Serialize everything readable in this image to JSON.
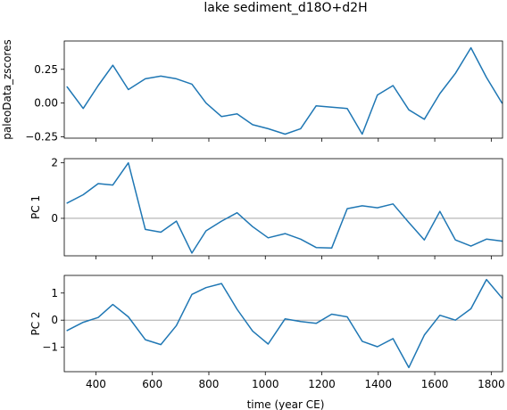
{
  "title": "lake sediment_d18O+d2H",
  "chart_data": [
    {
      "type": "line",
      "ylabel": "paleoData_zscores",
      "xlim": [
        288,
        1840
      ],
      "ylim": [
        -0.26,
        0.46
      ],
      "yticks": [
        -0.25,
        0.0,
        0.25
      ],
      "ytick_labels": [
        "−0.25",
        "0.00",
        "0.25"
      ],
      "zero_line": false,
      "x": [
        298,
        355,
        408,
        460,
        515,
        575,
        630,
        685,
        740,
        790,
        845,
        900,
        955,
        1010,
        1070,
        1125,
        1180,
        1235,
        1290,
        1343,
        1397,
        1452,
        1508,
        1563,
        1618,
        1673,
        1728,
        1783,
        1838
      ],
      "y": [
        0.12,
        -0.04,
        0.13,
        0.28,
        0.1,
        0.18,
        0.2,
        0.18,
        0.14,
        0.0,
        -0.1,
        -0.08,
        -0.16,
        -0.19,
        -0.23,
        -0.19,
        -0.02,
        -0.03,
        -0.04,
        -0.23,
        0.06,
        0.13,
        -0.05,
        -0.12,
        0.07,
        0.22,
        0.41,
        0.19,
        0.0
      ]
    },
    {
      "type": "line",
      "ylabel": "PC 1",
      "xlim": [
        288,
        1840
      ],
      "ylim": [
        -1.35,
        2.15
      ],
      "yticks": [
        0,
        2
      ],
      "ytick_labels": [
        "0",
        "2"
      ],
      "zero_line": true,
      "x": [
        298,
        355,
        408,
        460,
        515,
        575,
        630,
        685,
        740,
        790,
        845,
        900,
        955,
        1010,
        1070,
        1125,
        1180,
        1235,
        1290,
        1343,
        1397,
        1452,
        1508,
        1563,
        1618,
        1673,
        1728,
        1783,
        1838
      ],
      "y": [
        0.55,
        0.85,
        1.25,
        1.2,
        2.0,
        -0.4,
        -0.5,
        -0.1,
        -1.25,
        -0.45,
        -0.1,
        0.2,
        -0.3,
        -0.7,
        -0.55,
        -0.75,
        -1.05,
        -1.07,
        0.35,
        0.45,
        0.38,
        0.52,
        -0.15,
        -0.78,
        0.25,
        -0.78,
        -1.0,
        -0.75,
        -0.82
      ]
    },
    {
      "type": "line",
      "ylabel": "PC 2",
      "xlim": [
        288,
        1840
      ],
      "ylim": [
        -1.9,
        1.65
      ],
      "yticks": [
        -1,
        0,
        1
      ],
      "ytick_labels": [
        "−1",
        "0",
        "1"
      ],
      "zero_line": true,
      "x": [
        298,
        355,
        408,
        460,
        515,
        575,
        630,
        685,
        740,
        790,
        845,
        900,
        955,
        1010,
        1070,
        1125,
        1180,
        1235,
        1290,
        1343,
        1397,
        1452,
        1508,
        1563,
        1618,
        1673,
        1728,
        1783,
        1838
      ],
      "y": [
        -0.38,
        -0.08,
        0.1,
        0.58,
        0.12,
        -0.72,
        -0.9,
        -0.2,
        0.95,
        1.2,
        1.35,
        0.4,
        -0.4,
        -0.88,
        0.05,
        -0.05,
        -0.12,
        0.22,
        0.12,
        -0.78,
        -0.98,
        -0.68,
        -1.75,
        -0.55,
        0.18,
        0.0,
        0.42,
        1.5,
        0.82
      ]
    }
  ],
  "xaxis": {
    "label": "time (year CE)",
    "ticks": [
      400,
      600,
      800,
      1000,
      1200,
      1400,
      1600,
      1800
    ],
    "tick_labels": [
      "400",
      "600",
      "800",
      "1000",
      "1200",
      "1400",
      "1600",
      "1800"
    ]
  }
}
